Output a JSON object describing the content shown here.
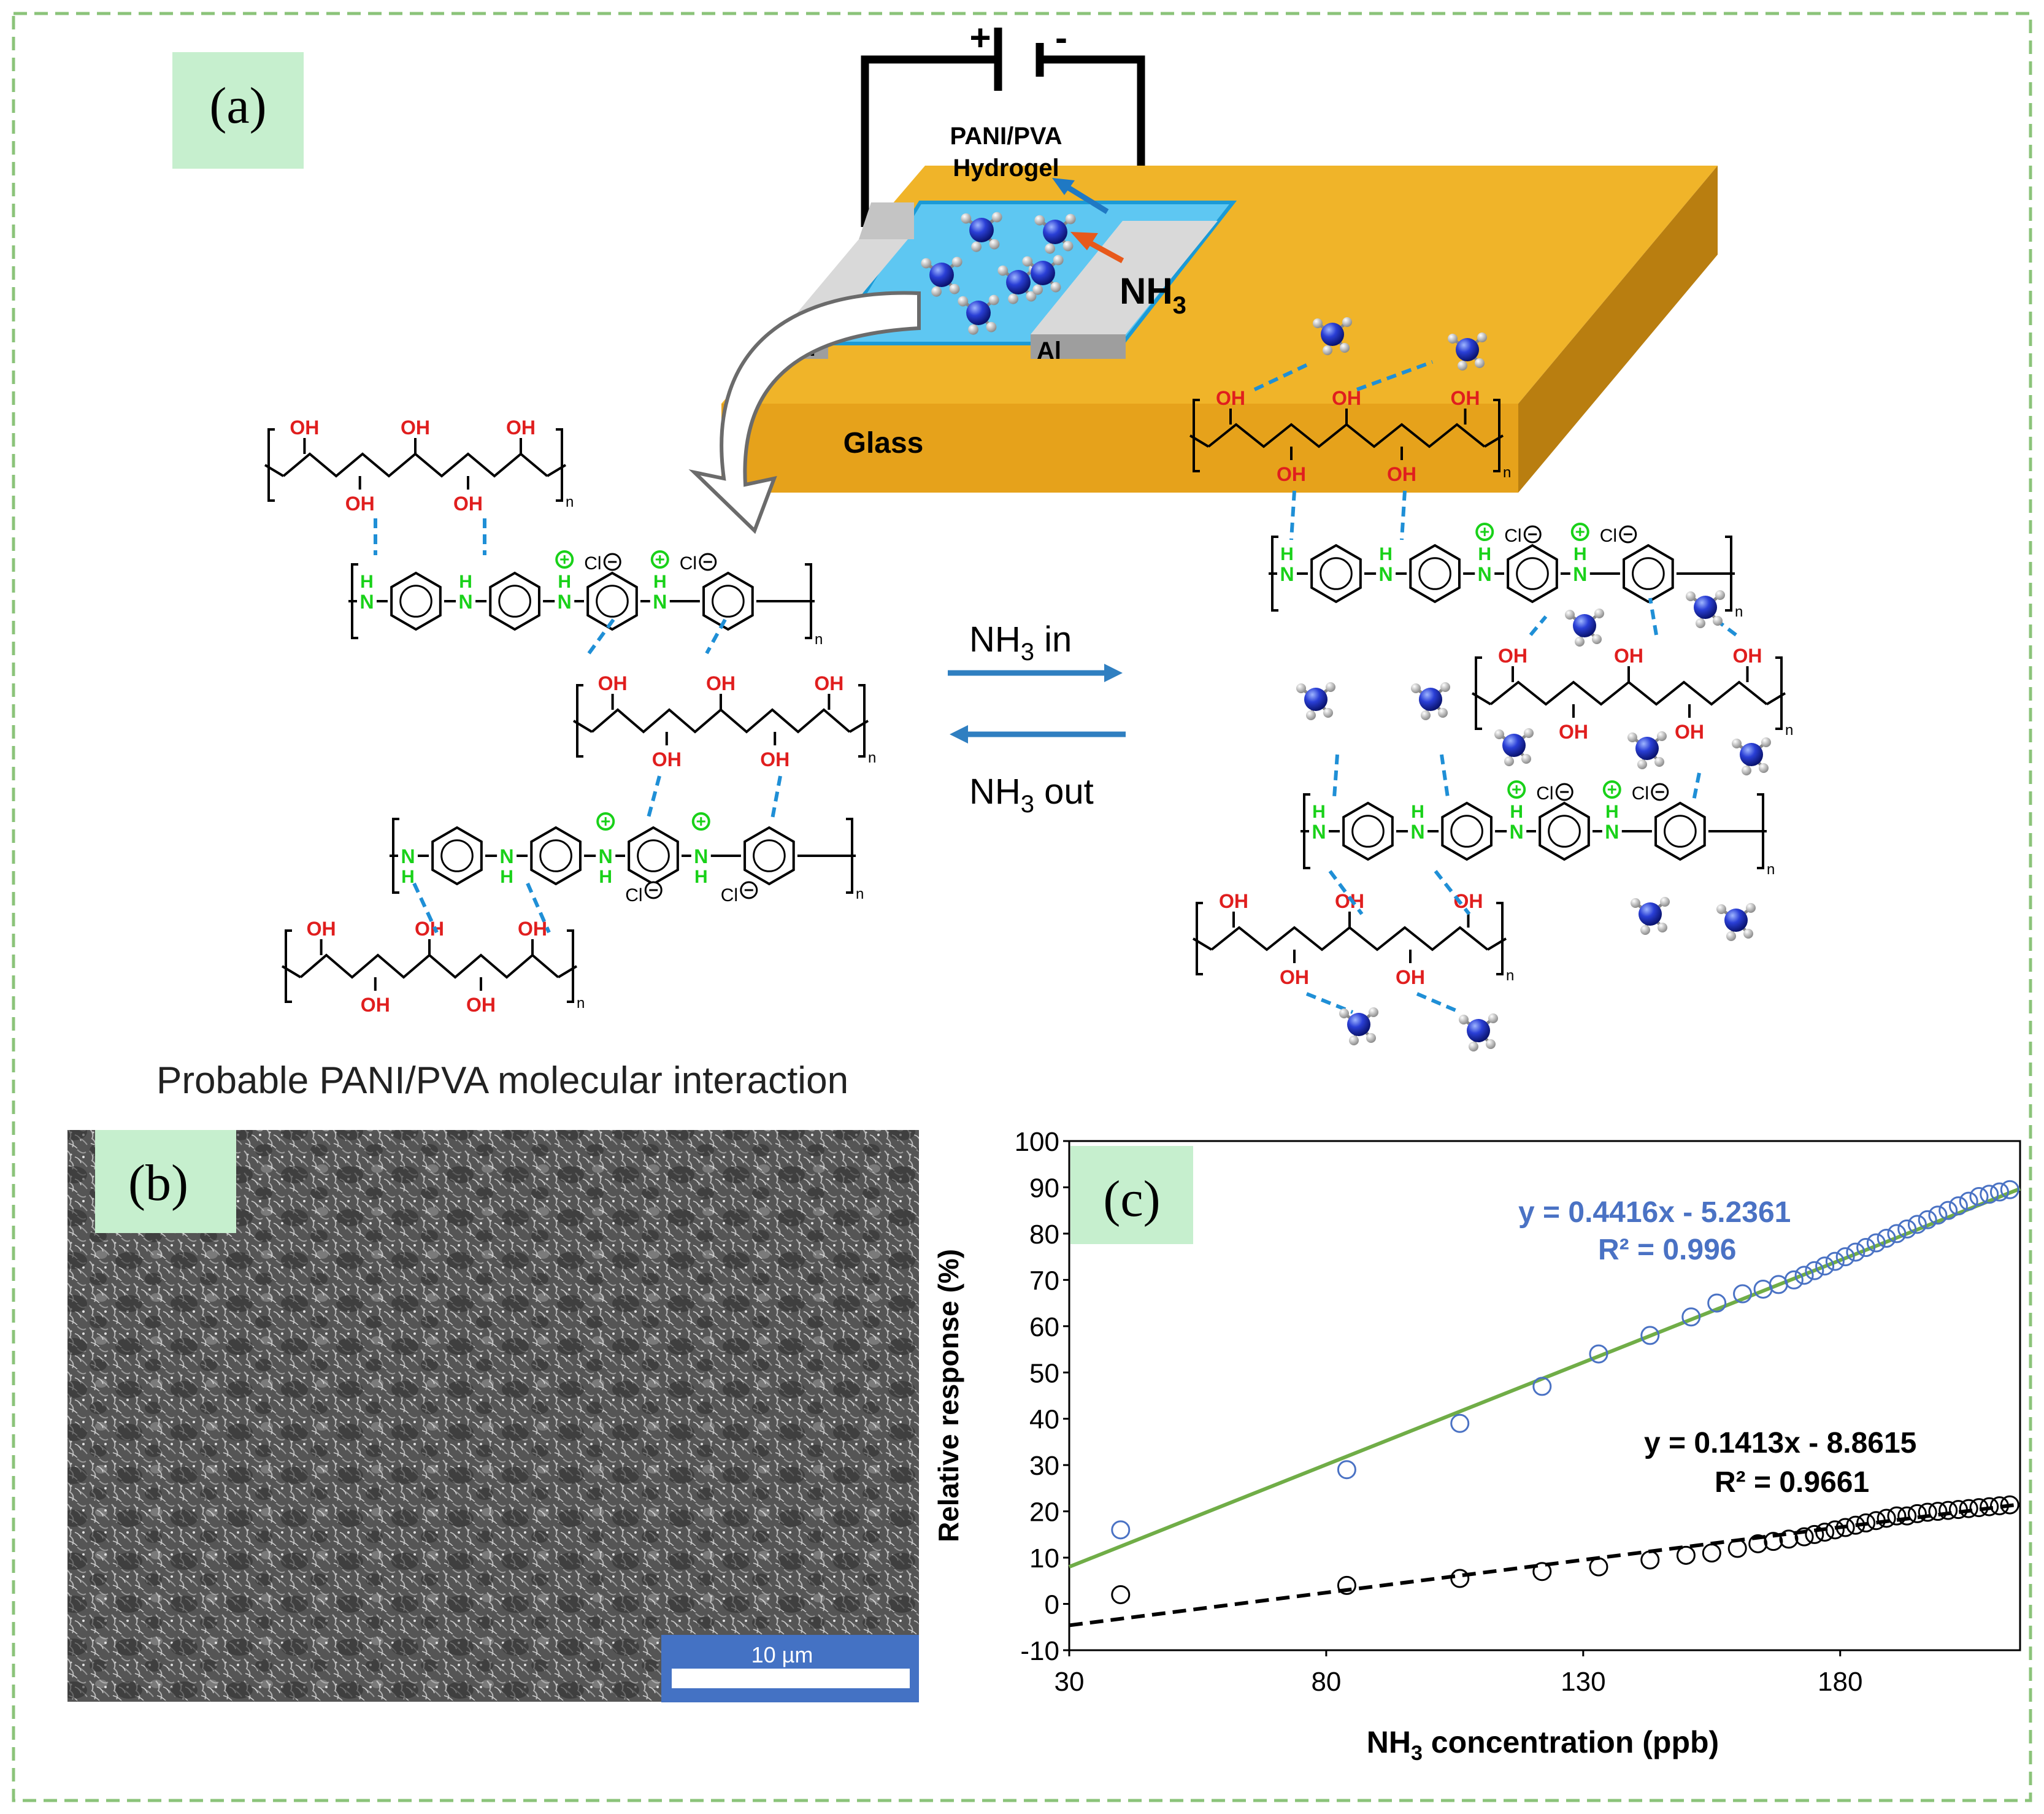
{
  "colors": {
    "frame": "#8bc37a",
    "panel_label_bg": "#c6efce",
    "gold": "#f0b429",
    "electrode": "#bdbdbd",
    "gel": "#5ec7f2",
    "bond_blue": "#1f8fd6",
    "oh_red": "#e01e1e",
    "nh_green": "#19d119",
    "blue_series": "#4a72c4",
    "fit_green": "#70ad47",
    "scale_bar": "#4472c4"
  },
  "panel_a": {
    "label": "(a)",
    "plus": "+",
    "minus": "-",
    "hydrogel_line1": "PANI/PVA",
    "hydrogel_line2": "Hydrogel",
    "nh3_main": "NH",
    "nh3_sub": "3",
    "al_left": "Al",
    "al_right": "Al",
    "glass": "Glass",
    "oh": "OH",
    "h": "H",
    "n": "N",
    "cl": "Cl",
    "n_sub": "n",
    "nh3in_main": "NH",
    "nh3in_sub": "3",
    "nh3in_rest": " in",
    "nh3out_main": "NH",
    "nh3out_sub": "3",
    "nh3out_rest": " out",
    "caption": "Probable PANI/PVA molecular interaction"
  },
  "panel_b": {
    "label": "(b)",
    "scale_bar_text": "10 µm"
  },
  "panel_c": {
    "label": "(c)",
    "ylabel": "Relative response (%)",
    "xlabel_main": "NH",
    "xlabel_sub": "3",
    "xlabel_rest": " concentration (ppb)",
    "eq_blue": "y = 0.4416x - 5.2361",
    "r2_blue": "R² = 0.996",
    "eq_black": "y = 0.1413x - 8.8615",
    "r2_black": "R² = 0.9661"
  },
  "chart_data": {
    "type": "scatter",
    "xlim": [
      30,
      215
    ],
    "ylim": [
      -10,
      100
    ],
    "xticks": [
      30,
      80,
      130,
      180
    ],
    "yticks": [
      -10,
      0,
      10,
      20,
      30,
      40,
      50,
      60,
      70,
      80,
      90,
      100
    ],
    "grid": false,
    "series": [
      {
        "color": "#4a72c4",
        "fit": {
          "slope": 0.4416,
          "intercept": -5.2361,
          "color": "#70ad47",
          "style": "solid"
        },
        "x": [
          40,
          84,
          106,
          122,
          133,
          143,
          151,
          156,
          161,
          165,
          168,
          171,
          173,
          175,
          177,
          179,
          181,
          183,
          185,
          187,
          189,
          191,
          193,
          195,
          197,
          199,
          201,
          203,
          205,
          207,
          209,
          211,
          213
        ],
        "y": [
          16,
          29,
          39,
          47,
          54,
          58,
          62,
          65,
          67,
          68,
          69,
          70,
          71,
          72,
          73,
          74,
          75,
          76,
          77,
          78,
          79,
          80,
          81,
          82,
          83,
          84,
          85,
          86,
          87,
          88,
          88.5,
          89,
          89.5
        ]
      },
      {
        "color": "#000000",
        "fit": {
          "slope": 0.1413,
          "intercept": -8.8615,
          "color": "#000000",
          "style": "dashed"
        },
        "x": [
          40,
          84,
          106,
          122,
          133,
          143,
          150,
          155,
          160,
          164,
          167,
          170,
          173,
          175,
          177,
          179,
          181,
          183,
          185,
          187,
          189,
          191,
          193,
          195,
          197,
          199,
          201,
          203,
          205,
          207,
          209,
          211,
          213
        ],
        "y": [
          2,
          4,
          5.5,
          7,
          8,
          9.5,
          10.5,
          11,
          12,
          13,
          13.5,
          14,
          14.5,
          15,
          15.5,
          16,
          16.5,
          17,
          17.5,
          18,
          18.5,
          19,
          19,
          19.5,
          19.8,
          20,
          20.2,
          20.4,
          20.6,
          20.8,
          21,
          21.2,
          21.4
        ]
      }
    ]
  }
}
